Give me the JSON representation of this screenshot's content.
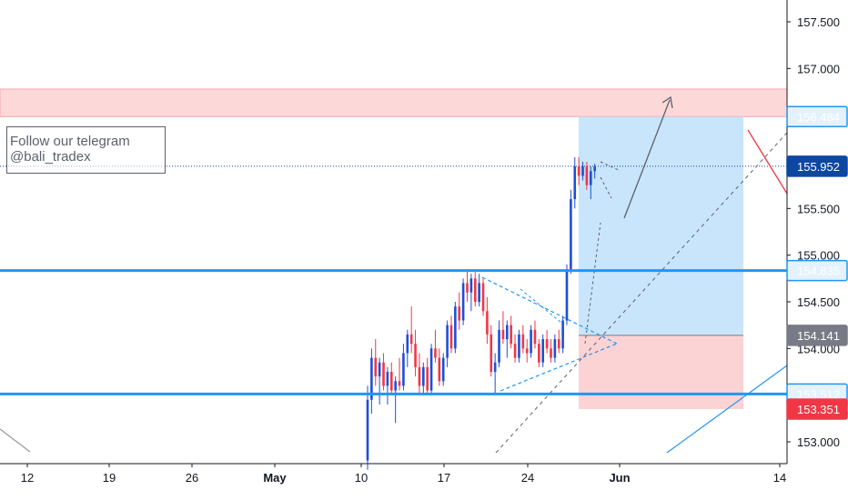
{
  "chart_data": {
    "type": "candlestick",
    "y_axis": {
      "position": "right",
      "ticks": [
        "157.500",
        "157.000",
        "155.500",
        "155.000",
        "154.500",
        "154.000",
        "153.000"
      ],
      "tick_values": [
        157.5,
        157.0,
        155.5,
        155.0,
        154.5,
        154.0,
        153.0
      ],
      "range": [
        152.75,
        157.9
      ]
    },
    "x_axis": {
      "ticks": [
        "12",
        "19",
        "26",
        "May",
        "10",
        "17",
        "24",
        "Jun",
        "14"
      ]
    },
    "price_labels": [
      {
        "id": "resistance-top",
        "text": "156.484",
        "value": 156.484,
        "style": "blue-outline"
      },
      {
        "id": "current-price",
        "text": "155.952",
        "value": 155.952,
        "style": "dark-blue"
      },
      {
        "id": "support-upper",
        "text": "154.835",
        "value": 154.835,
        "style": "blue-outline"
      },
      {
        "id": "entry",
        "text": "154.141",
        "value": 154.141,
        "style": "gray"
      },
      {
        "id": "support-lower",
        "text": "153.512",
        "value": 153.512,
        "style": "blue-outline"
      },
      {
        "id": "stop",
        "text": "153.351",
        "value": 153.351,
        "style": "red"
      }
    ],
    "horizontal_levels": [
      154.835,
      153.512
    ],
    "resistance_zone": [
      156.484,
      156.78
    ],
    "position": {
      "entry": 154.141,
      "target": 156.484,
      "stop": 153.351
    },
    "last_price": 155.952,
    "candles": [
      {
        "o": 152.8,
        "h": 153.6,
        "l": 152.7,
        "c": 153.45
      },
      {
        "o": 153.45,
        "h": 154.0,
        "l": 153.3,
        "c": 153.9
      },
      {
        "o": 153.9,
        "h": 154.1,
        "l": 153.6,
        "c": 153.7
      },
      {
        "o": 153.7,
        "h": 153.9,
        "l": 153.4,
        "c": 153.85
      },
      {
        "o": 153.85,
        "h": 153.95,
        "l": 153.55,
        "c": 153.6
      },
      {
        "o": 153.6,
        "h": 153.8,
        "l": 153.4,
        "c": 153.75
      },
      {
        "o": 153.75,
        "h": 153.85,
        "l": 153.5,
        "c": 153.55
      },
      {
        "o": 153.55,
        "h": 153.7,
        "l": 153.2,
        "c": 153.65
      },
      {
        "o": 153.65,
        "h": 153.9,
        "l": 153.55,
        "c": 153.6
      },
      {
        "o": 153.6,
        "h": 154.05,
        "l": 153.55,
        "c": 153.95
      },
      {
        "o": 153.95,
        "h": 154.2,
        "l": 153.8,
        "c": 154.15
      },
      {
        "o": 154.15,
        "h": 154.45,
        "l": 153.95,
        "c": 154.05
      },
      {
        "o": 154.05,
        "h": 154.2,
        "l": 153.7,
        "c": 153.8
      },
      {
        "o": 153.8,
        "h": 153.95,
        "l": 153.5,
        "c": 153.6
      },
      {
        "o": 153.6,
        "h": 153.85,
        "l": 153.5,
        "c": 153.8
      },
      {
        "o": 153.8,
        "h": 153.9,
        "l": 153.5,
        "c": 153.55
      },
      {
        "o": 153.55,
        "h": 154.05,
        "l": 153.5,
        "c": 154.0
      },
      {
        "o": 154.0,
        "h": 154.2,
        "l": 153.85,
        "c": 153.9
      },
      {
        "o": 153.9,
        "h": 154.0,
        "l": 153.6,
        "c": 153.65
      },
      {
        "o": 153.65,
        "h": 153.95,
        "l": 153.6,
        "c": 153.9
      },
      {
        "o": 153.9,
        "h": 154.3,
        "l": 153.8,
        "c": 154.25
      },
      {
        "o": 154.25,
        "h": 154.35,
        "l": 153.95,
        "c": 154.0
      },
      {
        "o": 154.0,
        "h": 154.5,
        "l": 153.95,
        "c": 154.45
      },
      {
        "o": 154.45,
        "h": 154.6,
        "l": 154.2,
        "c": 154.3
      },
      {
        "o": 154.3,
        "h": 154.75,
        "l": 154.25,
        "c": 154.7
      },
      {
        "o": 154.7,
        "h": 154.85,
        "l": 154.5,
        "c": 154.6
      },
      {
        "o": 154.6,
        "h": 154.8,
        "l": 154.4,
        "c": 154.75
      },
      {
        "o": 154.75,
        "h": 154.82,
        "l": 154.45,
        "c": 154.5
      },
      {
        "o": 154.5,
        "h": 154.8,
        "l": 154.45,
        "c": 154.7
      },
      {
        "o": 154.7,
        "h": 154.75,
        "l": 154.35,
        "c": 154.4
      },
      {
        "o": 154.4,
        "h": 154.55,
        "l": 154.05,
        "c": 154.15
      },
      {
        "o": 154.15,
        "h": 154.25,
        "l": 153.7,
        "c": 153.75
      },
      {
        "o": 153.75,
        "h": 153.95,
        "l": 153.5,
        "c": 153.85
      },
      {
        "o": 153.85,
        "h": 154.3,
        "l": 153.8,
        "c": 154.2
      },
      {
        "o": 154.2,
        "h": 154.4,
        "l": 154.05,
        "c": 154.1
      },
      {
        "o": 154.1,
        "h": 154.3,
        "l": 153.9,
        "c": 154.25
      },
      {
        "o": 154.25,
        "h": 154.35,
        "l": 154.0,
        "c": 154.05
      },
      {
        "o": 154.05,
        "h": 154.15,
        "l": 153.85,
        "c": 153.9
      },
      {
        "o": 153.9,
        "h": 154.2,
        "l": 153.85,
        "c": 154.15
      },
      {
        "o": 154.15,
        "h": 154.25,
        "l": 153.95,
        "c": 154.0
      },
      {
        "o": 154.0,
        "h": 154.1,
        "l": 153.85,
        "c": 153.95
      },
      {
        "o": 153.95,
        "h": 154.25,
        "l": 153.9,
        "c": 154.2
      },
      {
        "o": 154.2,
        "h": 154.3,
        "l": 154.0,
        "c": 154.05
      },
      {
        "o": 154.05,
        "h": 154.1,
        "l": 153.8,
        "c": 153.85
      },
      {
        "o": 153.85,
        "h": 154.15,
        "l": 153.8,
        "c": 154.1
      },
      {
        "o": 154.1,
        "h": 154.2,
        "l": 153.95,
        "c": 154.0
      },
      {
        "o": 154.0,
        "h": 154.1,
        "l": 153.85,
        "c": 153.9
      },
      {
        "o": 153.9,
        "h": 154.15,
        "l": 153.85,
        "c": 154.1
      },
      {
        "o": 154.1,
        "h": 154.2,
        "l": 153.95,
        "c": 154.0
      },
      {
        "o": 154.0,
        "h": 154.35,
        "l": 153.95,
        "c": 154.3
      },
      {
        "o": 154.3,
        "h": 154.9,
        "l": 154.25,
        "c": 154.85
      },
      {
        "o": 154.85,
        "h": 155.7,
        "l": 154.8,
        "c": 155.6
      },
      {
        "o": 155.6,
        "h": 156.05,
        "l": 155.5,
        "c": 155.95
      },
      {
        "o": 155.95,
        "h": 156.05,
        "l": 155.75,
        "c": 155.85
      },
      {
        "o": 155.85,
        "h": 156.0,
        "l": 155.8,
        "c": 155.95
      },
      {
        "o": 155.95,
        "h": 156.0,
        "l": 155.7,
        "c": 155.75
      },
      {
        "o": 155.75,
        "h": 155.95,
        "l": 155.6,
        "c": 155.9
      },
      {
        "o": 155.9,
        "h": 155.98,
        "l": 155.82,
        "c": 155.95
      }
    ]
  },
  "annotation": {
    "line1": "Follow our telegram",
    "line2": "@bali_tradex"
  },
  "colors": {
    "up": "#1e4fd6",
    "down": "#f23645",
    "level_line": "#2196f3",
    "target_zone": "#bbdefb",
    "stop_zone": "#fccbcd",
    "resistance_zone": "#fdd8d9",
    "last_price_tag": "#0d47a1",
    "entry_tag": "#787b86",
    "stop_tag": "#f23645"
  }
}
